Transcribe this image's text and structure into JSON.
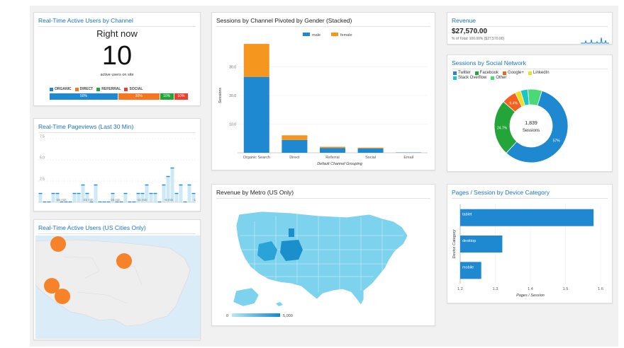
{
  "realtime_channel": {
    "title": "Real-Time Active Users by Channel",
    "subtitle": "Right now",
    "count": "10",
    "caption": "active users on site",
    "legend": [
      {
        "label": "ORGANIC",
        "color": "#1e88d0"
      },
      {
        "label": "DIRECT",
        "color": "#f5771f"
      },
      {
        "label": "REFERRAL",
        "color": "#24a53a"
      },
      {
        "label": "SOCIAL",
        "color": "#e8412f"
      }
    ],
    "segments": [
      {
        "label": "50%",
        "share": 0.5,
        "color": "#1e88d0"
      },
      {
        "label": "30%",
        "share": 0.3,
        "color": "#f5771f"
      },
      {
        "label": "10%",
        "share": 0.1,
        "color": "#24a53a"
      },
      {
        "label": "10%",
        "share": 0.1,
        "color": "#e8412f"
      }
    ]
  },
  "pageviews": {
    "title": "Real-Time Pageviews (Last 30 Min)",
    "y_ticks": [
      "7.5",
      "5.0",
      "2.5"
    ],
    "x_ticks": [
      "-26 min",
      "-21 min",
      "-16 min",
      "-11 min",
      "-6 min",
      "-1"
    ],
    "values": [
      1,
      0,
      0,
      1,
      1,
      0,
      0,
      0,
      1,
      1,
      2,
      1,
      0,
      2,
      0,
      0,
      0,
      1,
      0,
      0,
      1,
      0,
      0,
      1,
      1,
      2,
      1,
      1,
      0,
      2,
      3,
      4,
      1,
      2,
      0,
      2,
      1
    ]
  },
  "us_cities": {
    "title": "Real-Time Active Users (US Cities Only)"
  },
  "sessions_gender": {
    "title": "Sessions by Channel Pivoted by Gender (Stacked)",
    "chart_data": {
      "type": "bar",
      "stacked": true,
      "categories": [
        "Organic Search",
        "Direct",
        "Referral",
        "Social",
        "Email"
      ],
      "series": [
        {
          "name": "male",
          "values": [
            26.5,
            4.5,
            1.7,
            1.5,
            0.1
          ],
          "color": "#1e88d0"
        },
        {
          "name": "female",
          "values": [
            11.5,
            1.6,
            0.4,
            0.3,
            0.0
          ],
          "color": "#f5971f"
        }
      ],
      "y_ticks": [
        "10.0",
        "20.0",
        "30.0"
      ],
      "ylim": [
        0,
        40
      ],
      "xlabel": "Default Channel Grouping",
      "ylabel": "Sessions",
      "legend_position": "top"
    }
  },
  "metro": {
    "title": "Revenue by Metro (US Only)",
    "scale_min": "0",
    "scale_max": "5,000"
  },
  "revenue": {
    "title": "Revenue",
    "value": "$27,570.00",
    "subtext": "% of Total: 100.00% ($27,570.00)"
  },
  "social": {
    "title": "Sessions by Social Network",
    "center_value": "1,839",
    "center_label": "Sessions",
    "chart_data": {
      "type": "pie",
      "legend": [
        {
          "label": "Twitter",
          "color": "#1e88d0"
        },
        {
          "label": "Facebook",
          "color": "#24a53a"
        },
        {
          "label": "Google+",
          "color": "#f5601f"
        },
        {
          "label": "LinkedIn",
          "color": "#f2de1d"
        },
        {
          "label": "Stack Overflow",
          "color": "#19c7c4"
        },
        {
          "label": "Other",
          "color": "#4bd876"
        }
      ],
      "slices": [
        {
          "label": "Twitter",
          "value": 57,
          "text": "57%"
        },
        {
          "label": "Facebook",
          "value": 24.7,
          "text": "24.7%"
        },
        {
          "label": "Google+",
          "value": 6.4,
          "text": "6.4%"
        },
        {
          "label": "LinkedIn",
          "value": 2.5,
          "text": ""
        },
        {
          "label": "Stack Overflow",
          "value": 3.2,
          "text": ""
        },
        {
          "label": "Other",
          "value": 6.2,
          "text": ""
        }
      ]
    }
  },
  "pages_session": {
    "title": "Pages / Session by Device Category",
    "chart_data": {
      "type": "bar",
      "orientation": "horizontal",
      "categories": [
        "tablet",
        "desktop",
        "mobile"
      ],
      "values": [
        1.58,
        1.32,
        1.26
      ],
      "xlim": [
        1.2,
        1.6
      ],
      "x_ticks": [
        "1.2",
        "1.3",
        "1.4",
        "1.5",
        "1.6"
      ],
      "xlabel": "Pages / Session",
      "ylabel": "Device Category"
    }
  }
}
